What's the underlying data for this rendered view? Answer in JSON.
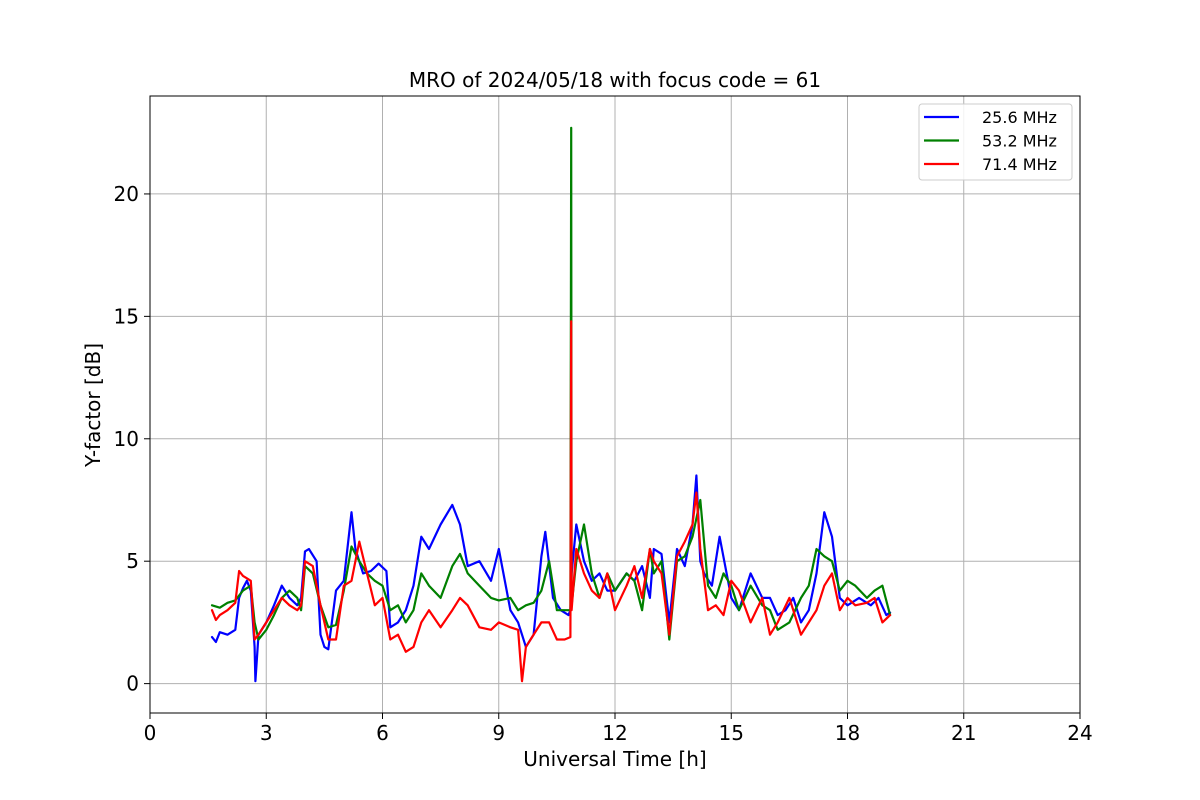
{
  "chart_data": {
    "type": "line",
    "title": "MRO of 2024/05/18 with focus code = 61",
    "xlabel": "Universal Time [h]",
    "ylabel": "Y-factor [dB]",
    "xlim": [
      0,
      24
    ],
    "ylim": [
      -1.2,
      24
    ],
    "xticks": [
      0,
      3,
      6,
      9,
      12,
      15,
      18,
      21,
      24
    ],
    "yticks": [
      0,
      5,
      10,
      15,
      20
    ],
    "grid": true,
    "legend_position": "top-right",
    "series": [
      {
        "name": "25.6 MHz",
        "color": "#0000ff",
        "x": [
          1.6,
          1.7,
          1.8,
          2.0,
          2.2,
          2.3,
          2.4,
          2.5,
          2.6,
          2.7,
          2.72,
          2.8,
          3.0,
          3.2,
          3.4,
          3.6,
          3.8,
          3.9,
          4.0,
          4.1,
          4.3,
          4.4,
          4.5,
          4.6,
          4.8,
          5.0,
          5.2,
          5.3,
          5.5,
          5.7,
          5.9,
          6.1,
          6.2,
          6.4,
          6.6,
          6.8,
          7.0,
          7.2,
          7.5,
          7.8,
          8.0,
          8.2,
          8.5,
          8.8,
          9.0,
          9.3,
          9.5,
          9.7,
          9.9,
          10.1,
          10.2,
          10.4,
          10.6,
          10.8,
          10.85,
          10.88,
          11.0,
          11.2,
          11.4,
          11.6,
          11.8,
          12.0,
          12.3,
          12.5,
          12.7,
          12.9,
          13.0,
          13.2,
          13.4,
          13.6,
          13.8,
          14.0,
          14.1,
          14.2,
          14.3,
          14.5,
          14.7,
          15.0,
          15.2,
          15.5,
          15.8,
          16.0,
          16.2,
          16.4,
          16.6,
          16.8,
          17.0,
          17.2,
          17.4,
          17.6,
          17.8,
          18.0,
          18.3,
          18.6,
          18.8,
          19.0,
          19.1
        ],
        "values": [
          1.9,
          1.7,
          2.1,
          2.0,
          2.2,
          3.5,
          3.9,
          4.2,
          3.8,
          1.5,
          0.1,
          2.0,
          2.5,
          3.2,
          4.0,
          3.5,
          3.2,
          3.5,
          5.4,
          5.5,
          5.0,
          2.0,
          1.5,
          1.4,
          3.8,
          4.2,
          7.0,
          5.5,
          4.5,
          4.6,
          4.9,
          4.6,
          2.3,
          2.5,
          3.0,
          4.0,
          6.0,
          5.5,
          6.5,
          7.3,
          6.5,
          4.8,
          5.0,
          4.2,
          5.5,
          3.0,
          2.5,
          1.5,
          2.0,
          5.2,
          6.2,
          3.5,
          3.0,
          2.8,
          3.0,
          4.5,
          6.5,
          5.0,
          4.2,
          4.5,
          3.8,
          3.8,
          4.5,
          4.2,
          4.8,
          3.5,
          5.5,
          5.3,
          2.5,
          5.5,
          4.8,
          6.5,
          8.5,
          5.0,
          4.5,
          4.0,
          6.0,
          3.5,
          3.0,
          4.5,
          3.5,
          3.5,
          2.8,
          3.0,
          3.5,
          2.5,
          3.0,
          4.5,
          7.0,
          6.0,
          3.5,
          3.2,
          3.5,
          3.2,
          3.5,
          2.8,
          2.9
        ]
      },
      {
        "name": "53.2 MHz",
        "color": "#008000",
        "x": [
          1.6,
          1.8,
          2.0,
          2.2,
          2.4,
          2.6,
          2.7,
          2.8,
          3.0,
          3.2,
          3.4,
          3.6,
          3.8,
          3.9,
          4.0,
          4.2,
          4.4,
          4.6,
          4.8,
          5.0,
          5.2,
          5.4,
          5.6,
          5.8,
          6.0,
          6.2,
          6.4,
          6.6,
          6.8,
          7.0,
          7.2,
          7.5,
          7.8,
          8.0,
          8.2,
          8.5,
          8.8,
          9.0,
          9.3,
          9.5,
          9.7,
          9.9,
          10.1,
          10.3,
          10.5,
          10.7,
          10.85,
          10.87,
          10.88,
          11.0,
          11.2,
          11.4,
          11.6,
          11.8,
          12.0,
          12.3,
          12.5,
          12.7,
          12.9,
          13.0,
          13.2,
          13.4,
          13.6,
          13.8,
          14.0,
          14.2,
          14.4,
          14.6,
          14.8,
          15.0,
          15.2,
          15.5,
          15.8,
          16.0,
          16.2,
          16.5,
          16.8,
          17.0,
          17.2,
          17.4,
          17.6,
          17.8,
          18.0,
          18.2,
          18.5,
          18.7,
          18.9,
          19.1
        ],
        "values": [
          3.2,
          3.1,
          3.3,
          3.4,
          3.8,
          4.0,
          2.5,
          1.8,
          2.2,
          2.8,
          3.5,
          3.8,
          3.5,
          3.0,
          4.8,
          4.5,
          3.2,
          2.3,
          2.4,
          3.8,
          5.6,
          5.0,
          4.5,
          4.2,
          4.0,
          3.0,
          3.2,
          2.5,
          3.0,
          4.5,
          4.0,
          3.5,
          4.8,
          5.3,
          4.5,
          4.0,
          3.5,
          3.4,
          3.5,
          3.0,
          3.2,
          3.3,
          3.8,
          5.0,
          3.0,
          3.0,
          3.0,
          22.7,
          3.2,
          5.0,
          6.5,
          4.5,
          3.5,
          4.5,
          3.8,
          4.5,
          4.2,
          3.0,
          5.5,
          4.5,
          5.0,
          1.8,
          5.0,
          5.2,
          6.0,
          7.5,
          4.0,
          3.5,
          4.5,
          4.0,
          3.0,
          4.0,
          3.2,
          3.0,
          2.2,
          2.5,
          3.5,
          4.0,
          5.5,
          5.2,
          5.0,
          3.8,
          4.2,
          4.0,
          3.5,
          3.8,
          4.0,
          2.8
        ]
      },
      {
        "name": "71.4 MHz",
        "color": "#ff0000",
        "x": [
          1.6,
          1.7,
          1.8,
          2.0,
          2.2,
          2.3,
          2.4,
          2.5,
          2.6,
          2.7,
          2.8,
          3.0,
          3.2,
          3.4,
          3.6,
          3.8,
          3.9,
          4.0,
          4.2,
          4.4,
          4.6,
          4.8,
          5.0,
          5.2,
          5.4,
          5.6,
          5.8,
          6.0,
          6.2,
          6.4,
          6.6,
          6.8,
          7.0,
          7.2,
          7.5,
          7.8,
          8.0,
          8.2,
          8.5,
          8.8,
          9.0,
          9.3,
          9.5,
          9.6,
          9.7,
          9.9,
          10.1,
          10.3,
          10.5,
          10.7,
          10.85,
          10.87,
          10.88,
          11.0,
          11.2,
          11.4,
          11.6,
          11.8,
          12.0,
          12.3,
          12.5,
          12.7,
          12.9,
          13.0,
          13.2,
          13.4,
          13.6,
          13.8,
          14.0,
          14.1,
          14.2,
          14.4,
          14.6,
          14.8,
          15.0,
          15.2,
          15.5,
          15.8,
          16.0,
          16.2,
          16.5,
          16.8,
          17.0,
          17.2,
          17.4,
          17.6,
          17.8,
          18.0,
          18.2,
          18.5,
          18.7,
          18.9,
          19.1
        ],
        "values": [
          3.0,
          2.6,
          2.8,
          3.0,
          3.3,
          4.6,
          4.4,
          4.3,
          4.2,
          1.8,
          2.0,
          2.5,
          3.0,
          3.5,
          3.2,
          3.0,
          3.2,
          5.0,
          4.8,
          3.2,
          1.8,
          1.8,
          4.0,
          4.2,
          5.8,
          4.5,
          3.2,
          3.5,
          1.8,
          2.0,
          1.3,
          1.5,
          2.5,
          3.0,
          2.3,
          3.0,
          3.5,
          3.2,
          2.3,
          2.2,
          2.5,
          2.3,
          2.2,
          0.1,
          1.5,
          2.0,
          2.5,
          2.5,
          1.8,
          1.8,
          1.9,
          14.8,
          3.0,
          5.5,
          4.5,
          3.8,
          3.5,
          4.5,
          3.0,
          4.0,
          4.8,
          3.5,
          5.5,
          5.0,
          4.5,
          2.0,
          5.2,
          5.8,
          6.5,
          7.8,
          5.5,
          3.0,
          3.2,
          2.8,
          4.2,
          3.8,
          2.5,
          3.5,
          2.0,
          2.5,
          3.5,
          2.0,
          2.5,
          3.0,
          4.0,
          4.5,
          3.0,
          3.5,
          3.2,
          3.3,
          3.5,
          2.5,
          2.8
        ]
      }
    ]
  }
}
